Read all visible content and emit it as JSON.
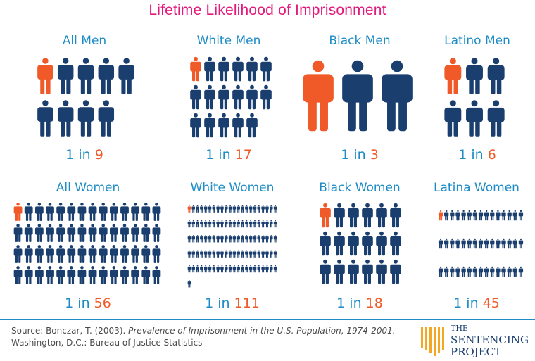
{
  "title": "Lifetime Likelihood of Imprisonment",
  "colors": {
    "highlight": "#f05a28",
    "person": "#1a3f6f",
    "label": "#1d8cc6",
    "title": "#e4197c"
  },
  "chart_data": {
    "type": "pictogram",
    "title": "Lifetime Likelihood of Imprisonment",
    "groups": [
      {
        "name": "All Men",
        "prefix": "1 in ",
        "value": 9
      },
      {
        "name": "White Men",
        "prefix": "1 in ",
        "value": 17
      },
      {
        "name": "Black Men",
        "prefix": "1 in ",
        "value": 3
      },
      {
        "name": "Latino Men",
        "prefix": "1 in ",
        "value": 6
      },
      {
        "name": "All Women",
        "prefix": "1 in ",
        "value": 56
      },
      {
        "name": "White Women",
        "prefix": "1 in ",
        "value": 111
      },
      {
        "name": "Black Women",
        "prefix": "1 in ",
        "value": 18
      },
      {
        "name": "Latina Women",
        "prefix": "1 in ",
        "value": 45
      }
    ]
  },
  "source": {
    "prefix": "Source: Bonczar, T. (2003). ",
    "italic": "Prevalence of Imprisonment in the U.S. Population, 1974-2001.",
    "suffix": " Washington, D.C.: Bureau of Justice Statistics"
  },
  "logo": {
    "line1": "THE",
    "line2": "SENTENCING",
    "line3": "PROJECT"
  }
}
